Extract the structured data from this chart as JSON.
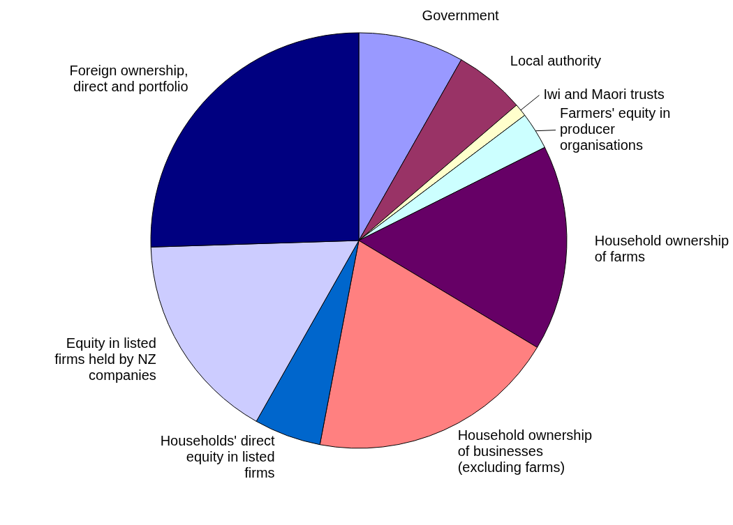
{
  "chart_data": {
    "type": "pie",
    "categories": [
      "Government",
      "Local authority",
      "Iwi and Maori trusts",
      "Farmers' equity in producer organisations",
      "Household ownership of farms",
      "Household ownership of businesses (excluding farms)",
      "Households' direct equity in listed firms",
      "Equity in listed firms held by NZ companies",
      "Foreign ownership, direct and portfolio"
    ],
    "values": [
      8.2,
      5.5,
      1,
      2.9,
      16,
      19.4,
      5.2,
      16.3,
      25.5
    ],
    "colors": [
      "#9999ff",
      "#993366",
      "#ffffcc",
      "#ccffff",
      "#660066",
      "#ff8080",
      "#0066cc",
      "#ccccff",
      "#000080"
    ]
  }
}
